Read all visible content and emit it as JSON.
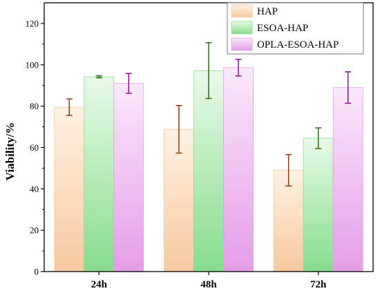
{
  "chart_data": {
    "type": "bar",
    "title": "",
    "xlabel": "",
    "ylabel": "Viability/%",
    "categories": [
      "24h",
      "48h",
      "72h"
    ],
    "ylim": [
      0,
      130
    ],
    "yticks": [
      0,
      20,
      40,
      60,
      80,
      100,
      120
    ],
    "grid": false,
    "legend": "top-right",
    "series": [
      {
        "name": "HAP",
        "values": [
          79.5,
          68.8,
          49.0
        ],
        "errors": [
          4.0,
          11.5,
          7.6
        ],
        "color_top": "#fff1e2",
        "color_bottom": "#f7c89e",
        "error_color": "#8b3a0e"
      },
      {
        "name": "ESOA-HAP",
        "values": [
          94.2,
          97.2,
          64.5
        ],
        "errors": [
          0.5,
          13.5,
          5.0
        ],
        "color_top": "#e8fae8",
        "color_bottom": "#86dc8c",
        "error_color": "#2f6a12"
      },
      {
        "name": "OPLA-ESOA-HAP",
        "values": [
          91.0,
          98.6,
          89.0
        ],
        "errors": [
          4.8,
          4.0,
          7.6
        ],
        "color_top": "#fae8fb",
        "color_bottom": "#e59ce8",
        "error_color": "#8a0c95"
      }
    ]
  }
}
